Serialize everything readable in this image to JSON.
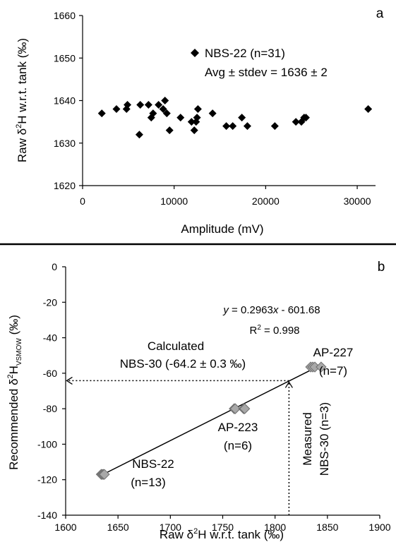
{
  "chart_data": [
    {
      "panel": "a",
      "type": "scatter",
      "xlabel": "Amplitude (mV)",
      "ylabel": {
        "pre": "Raw δ",
        "sup": "2",
        "post": "H w.r.t. tank (‰)"
      },
      "xlim": [
        0,
        32000
      ],
      "ylim": [
        1620,
        1660
      ],
      "xticks": [
        0,
        10000,
        20000,
        30000
      ],
      "yticks": [
        1620,
        1630,
        1640,
        1650,
        1660
      ],
      "marker": {
        "shape": "diamond",
        "color": "#000000"
      },
      "legend": {
        "label": "NBS-22 (n=31)",
        "stat": "Avg ± stdev = 1636 ± 2",
        "position": "top-right"
      },
      "points": [
        [
          2100,
          1637
        ],
        [
          3700,
          1638
        ],
        [
          4800,
          1638
        ],
        [
          4900,
          1639
        ],
        [
          6200,
          1632
        ],
        [
          6300,
          1639
        ],
        [
          7200,
          1639
        ],
        [
          7500,
          1636
        ],
        [
          7700,
          1637
        ],
        [
          8300,
          1639
        ],
        [
          8800,
          1638
        ],
        [
          9000,
          1640
        ],
        [
          9200,
          1637
        ],
        [
          9500,
          1633
        ],
        [
          10700,
          1636
        ],
        [
          11900,
          1635
        ],
        [
          12200,
          1633
        ],
        [
          12400,
          1635
        ],
        [
          12500,
          1636
        ],
        [
          12600,
          1638
        ],
        [
          14200,
          1637
        ],
        [
          15700,
          1634
        ],
        [
          16400,
          1634
        ],
        [
          17400,
          1636
        ],
        [
          18000,
          1634
        ],
        [
          21000,
          1634
        ],
        [
          23300,
          1635
        ],
        [
          23900,
          1635
        ],
        [
          24200,
          1636
        ],
        [
          24400,
          1636
        ],
        [
          31200,
          1638
        ]
      ]
    },
    {
      "panel": "b",
      "type": "scatter",
      "xlabel": {
        "pre": "Raw δ",
        "sup": "2",
        "post": "H w.r.t. tank (‰)"
      },
      "ylabel": {
        "pre": "Recommended δ",
        "sup": "2",
        "post": "H",
        "sub": "VSMOW",
        "tail": " (‰)"
      },
      "xlim": [
        1600,
        1900
      ],
      "ylim": [
        -140,
        0
      ],
      "xticks": [
        1600,
        1650,
        1700,
        1750,
        1800,
        1850,
        1900
      ],
      "yticks": [
        0,
        -20,
        -40,
        -60,
        -80,
        -100,
        -120,
        -140
      ],
      "marker": {
        "shape": "diamond",
        "color": "#a8a8a8",
        "edge": "#6e6e6e"
      },
      "line_color": "#000000",
      "series": [
        {
          "name": "NBS-22",
          "n_label": "(n=13)",
          "points": [
            [
              1634,
              -117
            ],
            [
              1635,
              -117
            ],
            [
              1636,
              -117
            ],
            [
              1637,
              -117
            ]
          ]
        },
        {
          "name": "AP-223",
          "n_label": "(n=6)",
          "points": [
            [
              1761,
              -80
            ],
            [
              1762,
              -80
            ],
            [
              1770,
              -80
            ],
            [
              1771,
              -80
            ]
          ]
        },
        {
          "name": "AP-227",
          "n_label": "(n=7)",
          "points": [
            [
              1834,
              -56.5
            ],
            [
              1836,
              -56.5
            ],
            [
              1838,
              -56.5
            ],
            [
              1844,
              -56.5
            ]
          ]
        }
      ],
      "regression": {
        "slope": 0.2963,
        "intercept": -601.68,
        "x_range": [
          1635,
          1845
        ],
        "equation": {
          "y": "y",
          "mid": " = 0.2963",
          "x": "x",
          "tail": " - 601.68"
        },
        "r2": {
          "pre": "R",
          "sup": "2",
          "post": " = 0.998"
        }
      },
      "annotations": {
        "calculated": [
          "Calculated",
          "NBS-30 (-64.2 ± 0.3 ‰)"
        ],
        "measured": [
          "Measured",
          "NBS-30 (n=3)"
        ]
      },
      "nbs30": {
        "measured_raw": 1813.3,
        "calculated_value": -64.2
      }
    }
  ]
}
